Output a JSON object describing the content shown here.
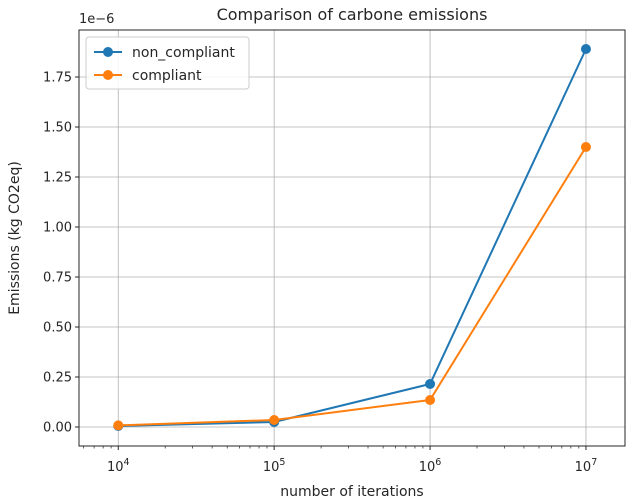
{
  "chart_data": {
    "type": "line",
    "title": "Comparison of carbone emissions",
    "xlabel": "number of iterations",
    "ylabel": "Emissions (kg CO2eq)",
    "y_offset_label": "1e−6",
    "x_scale": "log",
    "x": [
      10000,
      100000,
      1000000,
      10000000
    ],
    "x_tick_labels": [
      {
        "base": "10",
        "exp": "4"
      },
      {
        "base": "10",
        "exp": "5"
      },
      {
        "base": "10",
        "exp": "6"
      },
      {
        "base": "10",
        "exp": "7"
      }
    ],
    "y_ticks": [
      0.0,
      0.25,
      0.5,
      0.75,
      1.0,
      1.25,
      1.5,
      1.75
    ],
    "y_tick_labels": [
      "0.00",
      "0.25",
      "0.50",
      "0.75",
      "1.00",
      "1.25",
      "1.50",
      "1.75"
    ],
    "xlim": [
      5600,
      17800000
    ],
    "ylim": [
      -0.095,
      1.985
    ],
    "grid": true,
    "legend_position": "upper-left",
    "series": [
      {
        "name": "non_compliant",
        "color": "#1f77b4",
        "values": [
          0.005,
          0.025,
          0.215,
          1.89
        ]
      },
      {
        "name": "compliant",
        "color": "#ff7f0e",
        "values": [
          0.008,
          0.035,
          0.135,
          1.4
        ]
      }
    ]
  }
}
